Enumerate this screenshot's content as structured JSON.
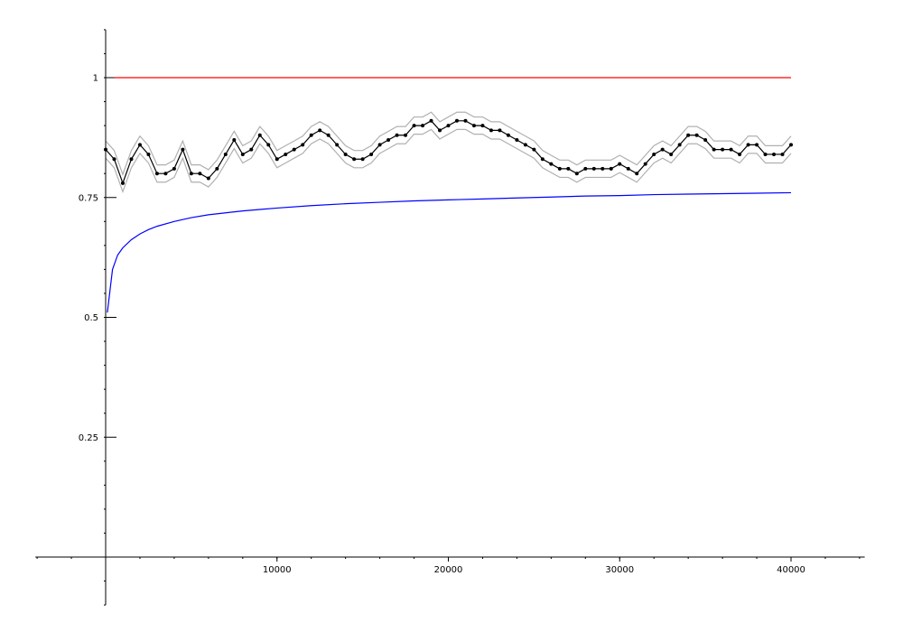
{
  "chart_data": {
    "type": "line",
    "title": "",
    "xlabel": "",
    "ylabel": "",
    "xlim": [
      -4100,
      44300
    ],
    "ylim": [
      -0.1,
      1.1
    ],
    "grid": false,
    "legend": "none",
    "x_ticks": [
      {
        "value": 10000,
        "label": "10000"
      },
      {
        "value": 20000,
        "label": "20000"
      },
      {
        "value": 30000,
        "label": "30000"
      },
      {
        "value": 40000,
        "label": "40000"
      }
    ],
    "y_ticks": [
      {
        "value": 0.25,
        "label": "0.25"
      },
      {
        "value": 0.5,
        "label": "0.5"
      },
      {
        "value": 0.75,
        "label": "0.75"
      },
      {
        "value": 1,
        "label": "1"
      }
    ],
    "y_minor_step": 0.05,
    "x_minor_step": 2000,
    "series": [
      {
        "style": "constant",
        "color": "#ff0000",
        "x": [
          500,
          40000
        ],
        "y": [
          1.0,
          1.0
        ]
      },
      {
        "style": "curve",
        "color": "#0000ff",
        "x": [
          100,
          400,
          700,
          1000,
          1500,
          2000,
          2500,
          3000,
          4000,
          5000,
          6000,
          7000,
          8000,
          9000,
          10000,
          12000,
          14000,
          16000,
          18000,
          20000,
          22000,
          24000,
          26000,
          28000,
          30000,
          32000,
          34000,
          36000,
          38000,
          40000
        ],
        "y": [
          0.51,
          0.6,
          0.63,
          0.645,
          0.662,
          0.674,
          0.683,
          0.69,
          0.7,
          0.708,
          0.714,
          0.718,
          0.722,
          0.725,
          0.728,
          0.733,
          0.737,
          0.74,
          0.743,
          0.745,
          0.747,
          0.749,
          0.751,
          0.753,
          0.754,
          0.756,
          0.757,
          0.758,
          0.759,
          0.76
        ]
      },
      {
        "style": "markers",
        "color": "#000000",
        "band_color": "#b0b0b0",
        "band": 0.018,
        "x": [
          0,
          500,
          1000,
          1500,
          2000,
          2500,
          3000,
          3500,
          4000,
          4500,
          5000,
          5500,
          6000,
          6500,
          7000,
          7500,
          8000,
          8500,
          9000,
          9500,
          10000,
          10500,
          11000,
          11500,
          12000,
          12500,
          13000,
          13500,
          14000,
          14500,
          15000,
          15500,
          16000,
          16500,
          17000,
          17500,
          18000,
          18500,
          19000,
          19500,
          20000,
          20500,
          21000,
          21500,
          22000,
          22500,
          23000,
          23500,
          24000,
          24500,
          25000,
          25500,
          26000,
          26500,
          27000,
          27500,
          28000,
          28500,
          29000,
          29500,
          30000,
          30500,
          31000,
          31500,
          32000,
          32500,
          33000,
          33500,
          34000,
          34500,
          35000,
          35500,
          36000,
          36500,
          37000,
          37500,
          38000,
          38500,
          39000,
          39500,
          40000
        ],
        "y": [
          0.85,
          0.83,
          0.78,
          0.83,
          0.86,
          0.84,
          0.8,
          0.8,
          0.81,
          0.85,
          0.8,
          0.8,
          0.79,
          0.81,
          0.84,
          0.87,
          0.84,
          0.85,
          0.88,
          0.86,
          0.83,
          0.84,
          0.85,
          0.86,
          0.88,
          0.89,
          0.88,
          0.86,
          0.84,
          0.83,
          0.83,
          0.84,
          0.86,
          0.87,
          0.88,
          0.88,
          0.9,
          0.9,
          0.91,
          0.89,
          0.9,
          0.91,
          0.91,
          0.9,
          0.9,
          0.89,
          0.89,
          0.88,
          0.87,
          0.86,
          0.85,
          0.83,
          0.82,
          0.81,
          0.81,
          0.8,
          0.81,
          0.81,
          0.81,
          0.81,
          0.82,
          0.81,
          0.8,
          0.82,
          0.84,
          0.85,
          0.84,
          0.86,
          0.88,
          0.88,
          0.87,
          0.85,
          0.85,
          0.85,
          0.84,
          0.86,
          0.86,
          0.84,
          0.84,
          0.84,
          0.86
        ]
      }
    ]
  }
}
